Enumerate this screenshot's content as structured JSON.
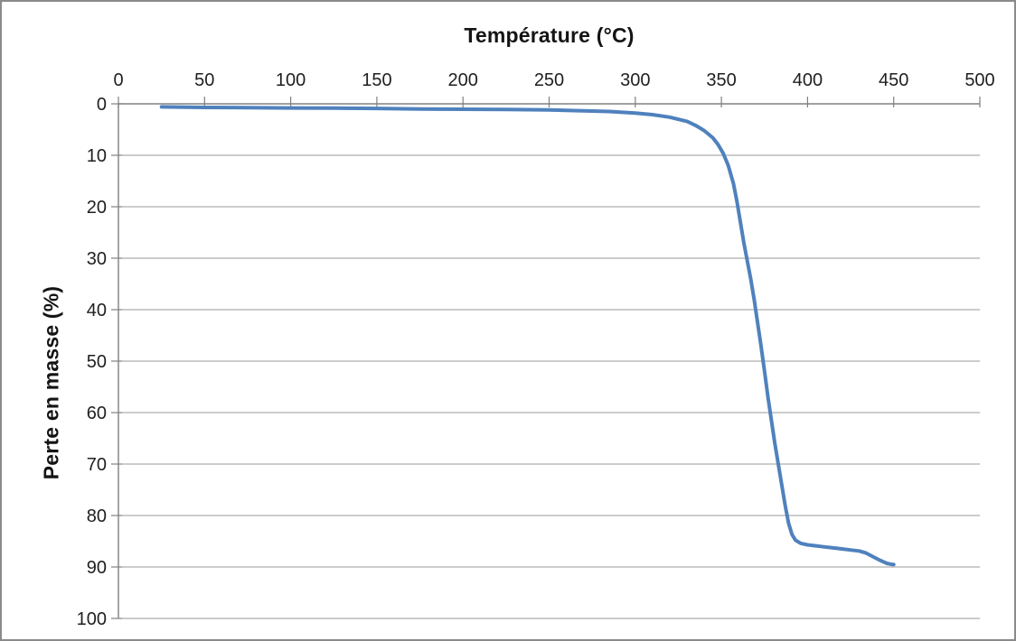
{
  "window": {
    "background": "#ffffff",
    "frame_border_color": "#8a8a8a"
  },
  "chart_data": {
    "type": "line",
    "x_axis_title": "Température (°C)",
    "y_axis_title": "Perte en masse (%)",
    "x_axis_position": "top",
    "y_axis_direction": "0 at top, 100 at bottom",
    "xlim": [
      0,
      500
    ],
    "ylim": [
      0,
      100
    ],
    "x_ticks": [
      0,
      50,
      100,
      150,
      200,
      250,
      300,
      350,
      400,
      450,
      500
    ],
    "y_ticks": [
      0,
      10,
      20,
      30,
      40,
      50,
      60,
      70,
      80,
      90,
      100
    ],
    "grid": "horizontal",
    "legend": "none",
    "axis_color": "#808080",
    "gridline_color": "#999999",
    "text_color": "#1f1f1f",
    "series": [
      {
        "name": "perte-en-masse-curve",
        "color": "#4F81BD",
        "stroke_width": 4,
        "points": [
          [
            25,
            0.6
          ],
          [
            50,
            0.7
          ],
          [
            75,
            0.75
          ],
          [
            100,
            0.8
          ],
          [
            125,
            0.85
          ],
          [
            150,
            0.9
          ],
          [
            175,
            1.0
          ],
          [
            200,
            1.05
          ],
          [
            225,
            1.1
          ],
          [
            250,
            1.2
          ],
          [
            270,
            1.35
          ],
          [
            285,
            1.5
          ],
          [
            300,
            1.8
          ],
          [
            310,
            2.1
          ],
          [
            320,
            2.6
          ],
          [
            330,
            3.4
          ],
          [
            335,
            4.2
          ],
          [
            340,
            5.2
          ],
          [
            345,
            6.6
          ],
          [
            348,
            7.9
          ],
          [
            351,
            9.6
          ],
          [
            354,
            12.0
          ],
          [
            357,
            15.5
          ],
          [
            359,
            19.0
          ],
          [
            361,
            23.0
          ],
          [
            363,
            27.0
          ],
          [
            365,
            30.5
          ],
          [
            367,
            34.0
          ],
          [
            369,
            38.0
          ],
          [
            371,
            42.5
          ],
          [
            373,
            47.0
          ],
          [
            375,
            52.0
          ],
          [
            377,
            57.0
          ],
          [
            379,
            61.5
          ],
          [
            381,
            66.0
          ],
          [
            383,
            70.0
          ],
          [
            385,
            74.0
          ],
          [
            387,
            78.0
          ],
          [
            389,
            81.5
          ],
          [
            391,
            83.7
          ],
          [
            393,
            84.8
          ],
          [
            396,
            85.4
          ],
          [
            400,
            85.7
          ],
          [
            405,
            85.9
          ],
          [
            410,
            86.1
          ],
          [
            415,
            86.3
          ],
          [
            420,
            86.5
          ],
          [
            425,
            86.7
          ],
          [
            430,
            86.9
          ],
          [
            434,
            87.3
          ],
          [
            438,
            88.0
          ],
          [
            442,
            88.7
          ],
          [
            446,
            89.3
          ],
          [
            449,
            89.5
          ],
          [
            450,
            89.5
          ]
        ]
      }
    ]
  }
}
